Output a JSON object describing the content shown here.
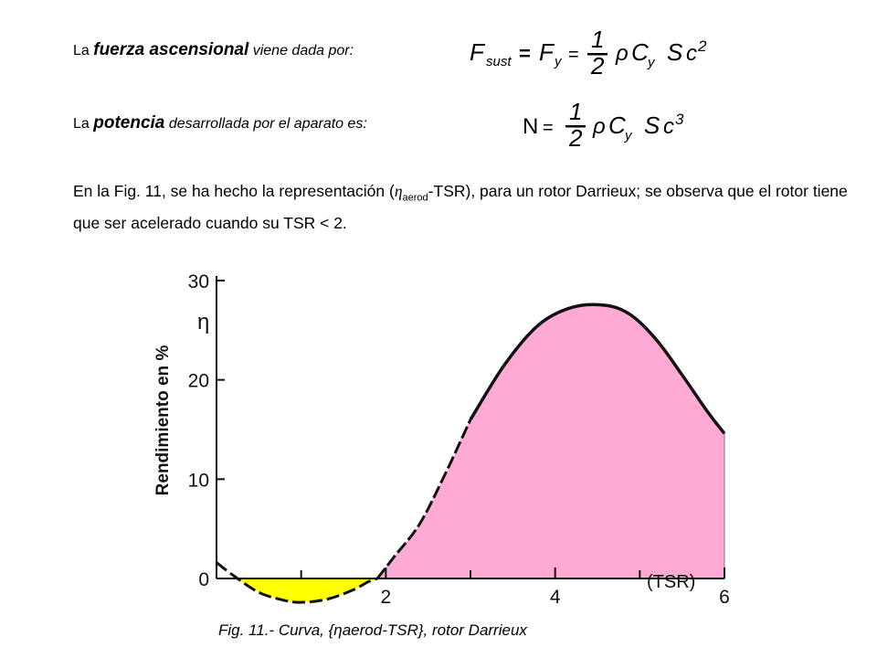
{
  "formula1": {
    "prefix": "La ",
    "emphasis": "fuerza ascensional",
    "suffix": " viene dada por:",
    "lhs": "F",
    "lhs_sub": "sust",
    "eq1": "=",
    "mid": "F",
    "mid_sub": "y",
    "eq2": "=",
    "num": "1",
    "den": "2",
    "rho": "ρ",
    "c": "C",
    "c_sub": "y",
    "s": "S",
    "v": "c",
    "v_exp": "2"
  },
  "formula2": {
    "prefix": "La ",
    "emphasis": "potencia",
    "suffix": " desarrollada por el aparato es:",
    "lhs": "N",
    "eq": "=",
    "num": "1",
    "den": "2",
    "rho": "ρ",
    "c": "C",
    "c_sub": "y",
    "s": "S",
    "v": "c",
    "v_exp": "3"
  },
  "paragraph": {
    "part1": "En la Fig. 11, se ha hecho la representación (",
    "eta": "η",
    "eta_sub": "aerod",
    "part2": "-TSR),  para un rotor Darrieux; se observa que el rotor tiene que ser acelerado cuando su TSR < 2."
  },
  "chart_data": {
    "type": "area",
    "ylabel": "Rendimiento en %",
    "ysymbol": "η",
    "xlabel": "(TSR)",
    "ylim": [
      0,
      30
    ],
    "xlim": [
      0,
      6
    ],
    "yticks": [
      "0",
      "10",
      "20",
      "30"
    ],
    "xticks": [
      "2",
      "4",
      "6"
    ],
    "series": [
      {
        "x": [
          0,
          0.2,
          0.5,
          0.8,
          1.0,
          1.3,
          1.6,
          1.8,
          1.9
        ],
        "y": [
          1.6,
          0.3,
          -1.4,
          -2.2,
          -2.4,
          -2.1,
          -1.2,
          -0.3,
          0
        ]
      },
      {
        "x": [
          1.9,
          2.1,
          2.4,
          2.7,
          3.0,
          3.4,
          3.8,
          4.2,
          4.6,
          4.9,
          5.2,
          5.5,
          5.8,
          6.0
        ],
        "y": [
          0,
          2.2,
          5.5,
          10.5,
          16.0,
          21.5,
          25.5,
          27.3,
          27.5,
          26.5,
          24.0,
          20.5,
          16.8,
          14.6
        ]
      }
    ],
    "colors": {
      "negative_fill": "#ffff00",
      "positive_fill": "#ffaad4",
      "line": "#111111"
    }
  },
  "caption": "Fig. 11.- Curva, {ηaerod-TSR}, rotor Darrieux"
}
